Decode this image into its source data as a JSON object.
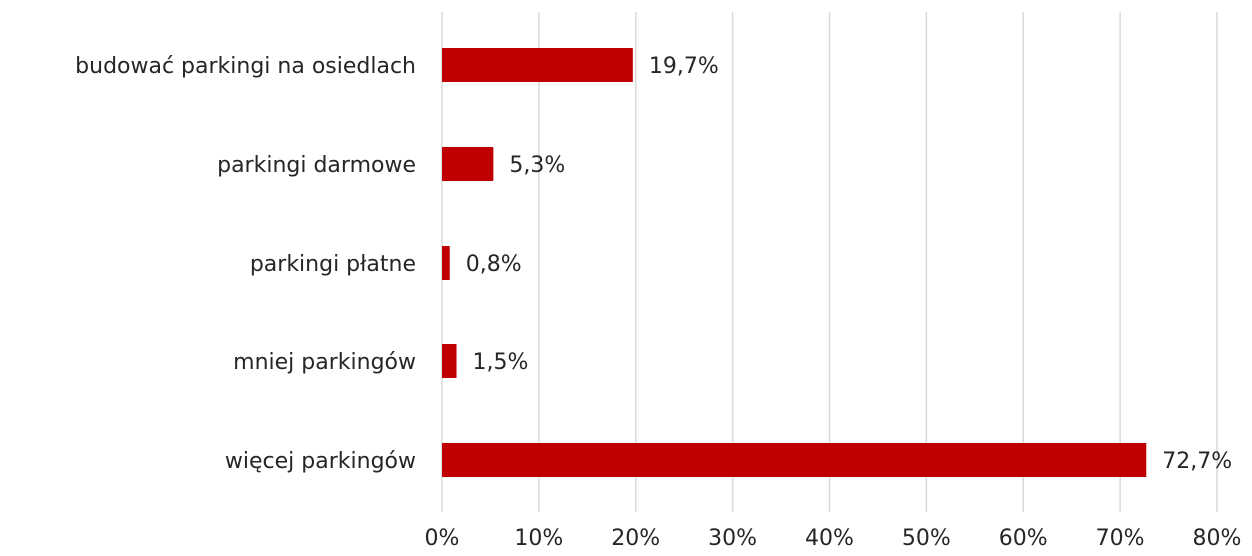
{
  "chart_data": {
    "type": "bar",
    "orientation": "horizontal",
    "categories": [
      "budować parkingi na osiedlach",
      "parkingi darmowe",
      "parkingi płatne",
      "mniej parkingów",
      "więcej parkingów"
    ],
    "values": [
      19.7,
      5.3,
      0.8,
      1.5,
      72.7
    ],
    "value_labels": [
      "19,7%",
      "5,3%",
      "0,8%",
      "1,5%",
      "72,7%"
    ],
    "x_ticks": [
      0,
      10,
      20,
      30,
      40,
      50,
      60,
      70,
      80
    ],
    "x_tick_labels": [
      "0%",
      "10%",
      "20%",
      "30%",
      "40%",
      "50%",
      "60%",
      "70%",
      "80%"
    ],
    "xlim": [
      0,
      80
    ],
    "grid": "vertical",
    "legend": "none",
    "title": "",
    "xlabel": "",
    "ylabel": "",
    "colors": {
      "bar": "#c00000",
      "grid": "#d9d9d9",
      "text": "#262626"
    }
  }
}
